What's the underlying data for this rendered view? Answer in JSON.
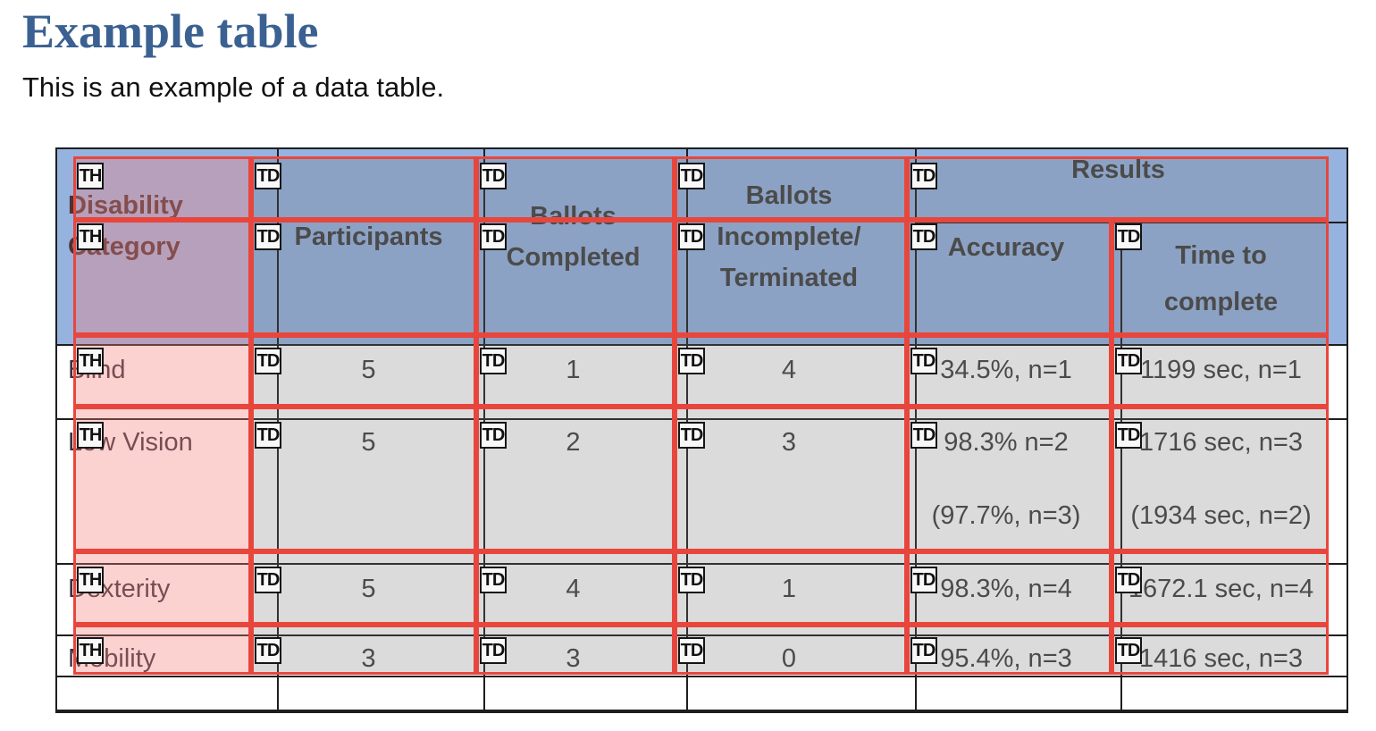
{
  "page": {
    "title": "Example table",
    "subtitle": "This is an example of a data table."
  },
  "table": {
    "header": {
      "col1": [
        "Disability",
        "Category"
      ],
      "participants": "Participants",
      "ballots_completed": [
        "Ballots",
        "Completed"
      ],
      "ballots_incomplete": [
        "Ballots",
        "Incomplete/",
        "Terminated"
      ],
      "results": "Results",
      "accuracy": "Accuracy",
      "time_to_complete": [
        "Time to",
        "complete"
      ]
    },
    "rows": [
      {
        "label": "Blind",
        "values": [
          "5",
          "1",
          "4"
        ],
        "accuracy": [
          "34.5%, n=1"
        ],
        "time": [
          "1199 sec, n=1"
        ]
      },
      {
        "label": "Low Vision",
        "values": [
          "5",
          "2",
          "3"
        ],
        "accuracy": [
          "98.3% n=2",
          "(97.7%, n=3)"
        ],
        "time": [
          "1716 sec, n=3",
          "(1934 sec, n=2)"
        ]
      },
      {
        "label": "Dexterity",
        "values": [
          "5",
          "4",
          "1"
        ],
        "accuracy": [
          "98.3%, n=4"
        ],
        "time": [
          "1672.1 sec, n=4"
        ]
      },
      {
        "label": "Mobility",
        "values": [
          "3",
          "3",
          "0"
        ],
        "accuracy": [
          "95.4%, n=3"
        ],
        "time": [
          "1416 sec, n=3"
        ]
      }
    ]
  },
  "overlay": {
    "tags": [
      "TH",
      "TD",
      "TD",
      "TD",
      "TD",
      "TH",
      "TD",
      "TD",
      "TD",
      "TD",
      "TD",
      "TH",
      "TD",
      "TD",
      "TD",
      "TD",
      "TD",
      "TH",
      "TD",
      "TD",
      "TD",
      "TD",
      "TD",
      "TH",
      "TD",
      "TD",
      "TD",
      "TD",
      "TD",
      "TH",
      "TD",
      "TD",
      "TD",
      "TD",
      "TD"
    ]
  },
  "colors": {
    "title_blue": "#3A6191",
    "header_blue": "#96B3E0",
    "overlay_red": "#E8463C",
    "th_tint": "rgba(244,126,120,0.35)",
    "td_tint": "rgba(110,110,110,0.25)"
  }
}
